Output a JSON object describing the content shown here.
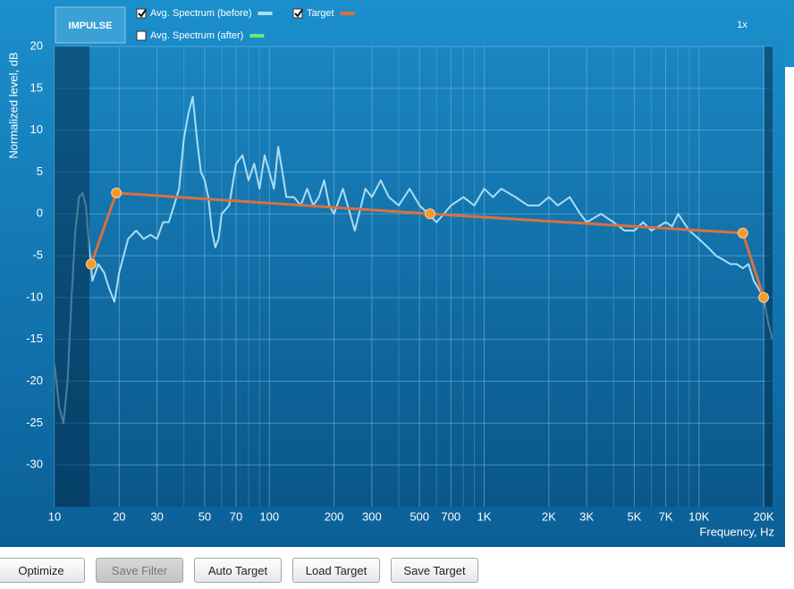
{
  "app": {
    "logo": "IMPULSE",
    "zoom": "1x",
    "buttons": [
      {
        "label": "Optimize",
        "enabled": true
      },
      {
        "label": "Save Filter",
        "enabled": false
      },
      {
        "label": "Auto Target",
        "enabled": true
      },
      {
        "label": "Load Target",
        "enabled": true
      },
      {
        "label": "Save Target",
        "enabled": true
      }
    ]
  },
  "chart_data": {
    "type": "line",
    "ylabel": "Normalized level, dB",
    "xlabel": "Frequency, Hz",
    "log_x": true,
    "grid": true,
    "xlim": [
      10,
      22000
    ],
    "ylim": [
      -35,
      20
    ],
    "yticks": [
      -30,
      -25,
      -20,
      -15,
      -10,
      -5,
      0,
      5,
      10,
      15,
      20
    ],
    "xticks": [
      10,
      20,
      30,
      50,
      70,
      100,
      200,
      300,
      500,
      700,
      {
        "value": 1000,
        "label": "1K"
      },
      {
        "value": 2000,
        "label": "2K"
      },
      {
        "value": 3000,
        "label": "3K"
      },
      {
        "value": 5000,
        "label": "5K"
      },
      {
        "value": 7000,
        "label": "7K"
      },
      {
        "value": 10000,
        "label": "10K"
      },
      {
        "value": 20000,
        "label": "20K"
      }
    ],
    "x_minor_ticks": [
      40,
      60,
      80,
      90,
      400,
      600,
      800,
      900,
      4000,
      6000,
      8000,
      9000
    ],
    "series": [
      {
        "name": "Avg. Spectrum (before)",
        "color": "#a9def4",
        "checked": true,
        "x": [
          10,
          10.5,
          11,
          11.5,
          12,
          12.5,
          13,
          13.5,
          14,
          14.5,
          15,
          16,
          17,
          18,
          19,
          20,
          22,
          24,
          26,
          28,
          30,
          32,
          34,
          36,
          38,
          40,
          42,
          44,
          46,
          48,
          50,
          52,
          54,
          56,
          58,
          60,
          65,
          70,
          75,
          80,
          85,
          90,
          95,
          100,
          105,
          110,
          115,
          120,
          130,
          140,
          150,
          160,
          170,
          180,
          190,
          200,
          220,
          250,
          280,
          300,
          330,
          360,
          400,
          450,
          500,
          550,
          600,
          650,
          700,
          800,
          900,
          1000,
          1100,
          1200,
          1400,
          1600,
          1800,
          2000,
          2200,
          2500,
          2800,
          3000,
          3500,
          4000,
          4500,
          5000,
          5500,
          6000,
          7000,
          7500,
          8000,
          9000,
          10000,
          11000,
          12000,
          13000,
          14000,
          15000,
          16000,
          17000,
          18000,
          19000,
          20000,
          21000,
          22000
        ],
        "values": [
          -18,
          -23,
          -25,
          -20,
          -10,
          -2,
          2,
          2.5,
          1,
          -4,
          -8,
          -6,
          -7,
          -9,
          -10.5,
          -7,
          -3,
          -2,
          -3,
          -2.5,
          -3,
          -1,
          -1,
          1,
          3,
          9,
          12,
          14,
          9,
          5,
          4,
          2,
          -2,
          -4,
          -3,
          0,
          1,
          6,
          7,
          4,
          6,
          3,
          7,
          5,
          3,
          8,
          5,
          2,
          2,
          1,
          3,
          1,
          2,
          4,
          1,
          0,
          3,
          -2,
          3,
          2,
          4,
          2,
          1,
          3,
          1,
          0,
          -1,
          0,
          1,
          2,
          1,
          3,
          2,
          3,
          2,
          1,
          1,
          2,
          1,
          2,
          0,
          -1,
          0,
          -1,
          -2,
          -2,
          -1,
          -2,
          -1,
          -1.5,
          0,
          -2,
          -3,
          -4,
          -5,
          -5.5,
          -6,
          -6,
          -6.5,
          -6,
          -8,
          -9,
          -10,
          -13,
          -15
        ]
      },
      {
        "name": "Target",
        "color": "#d9703f",
        "checked": true,
        "markers": true,
        "x": [
          14.8,
          19.4,
          560,
          16000,
          20000
        ],
        "values": [
          -6,
          2.5,
          0,
          -2.3,
          -10
        ]
      },
      {
        "name": "Avg. Spectrum (after)",
        "color": "#6ee87a",
        "checked": false,
        "x": [],
        "values": []
      }
    ]
  }
}
